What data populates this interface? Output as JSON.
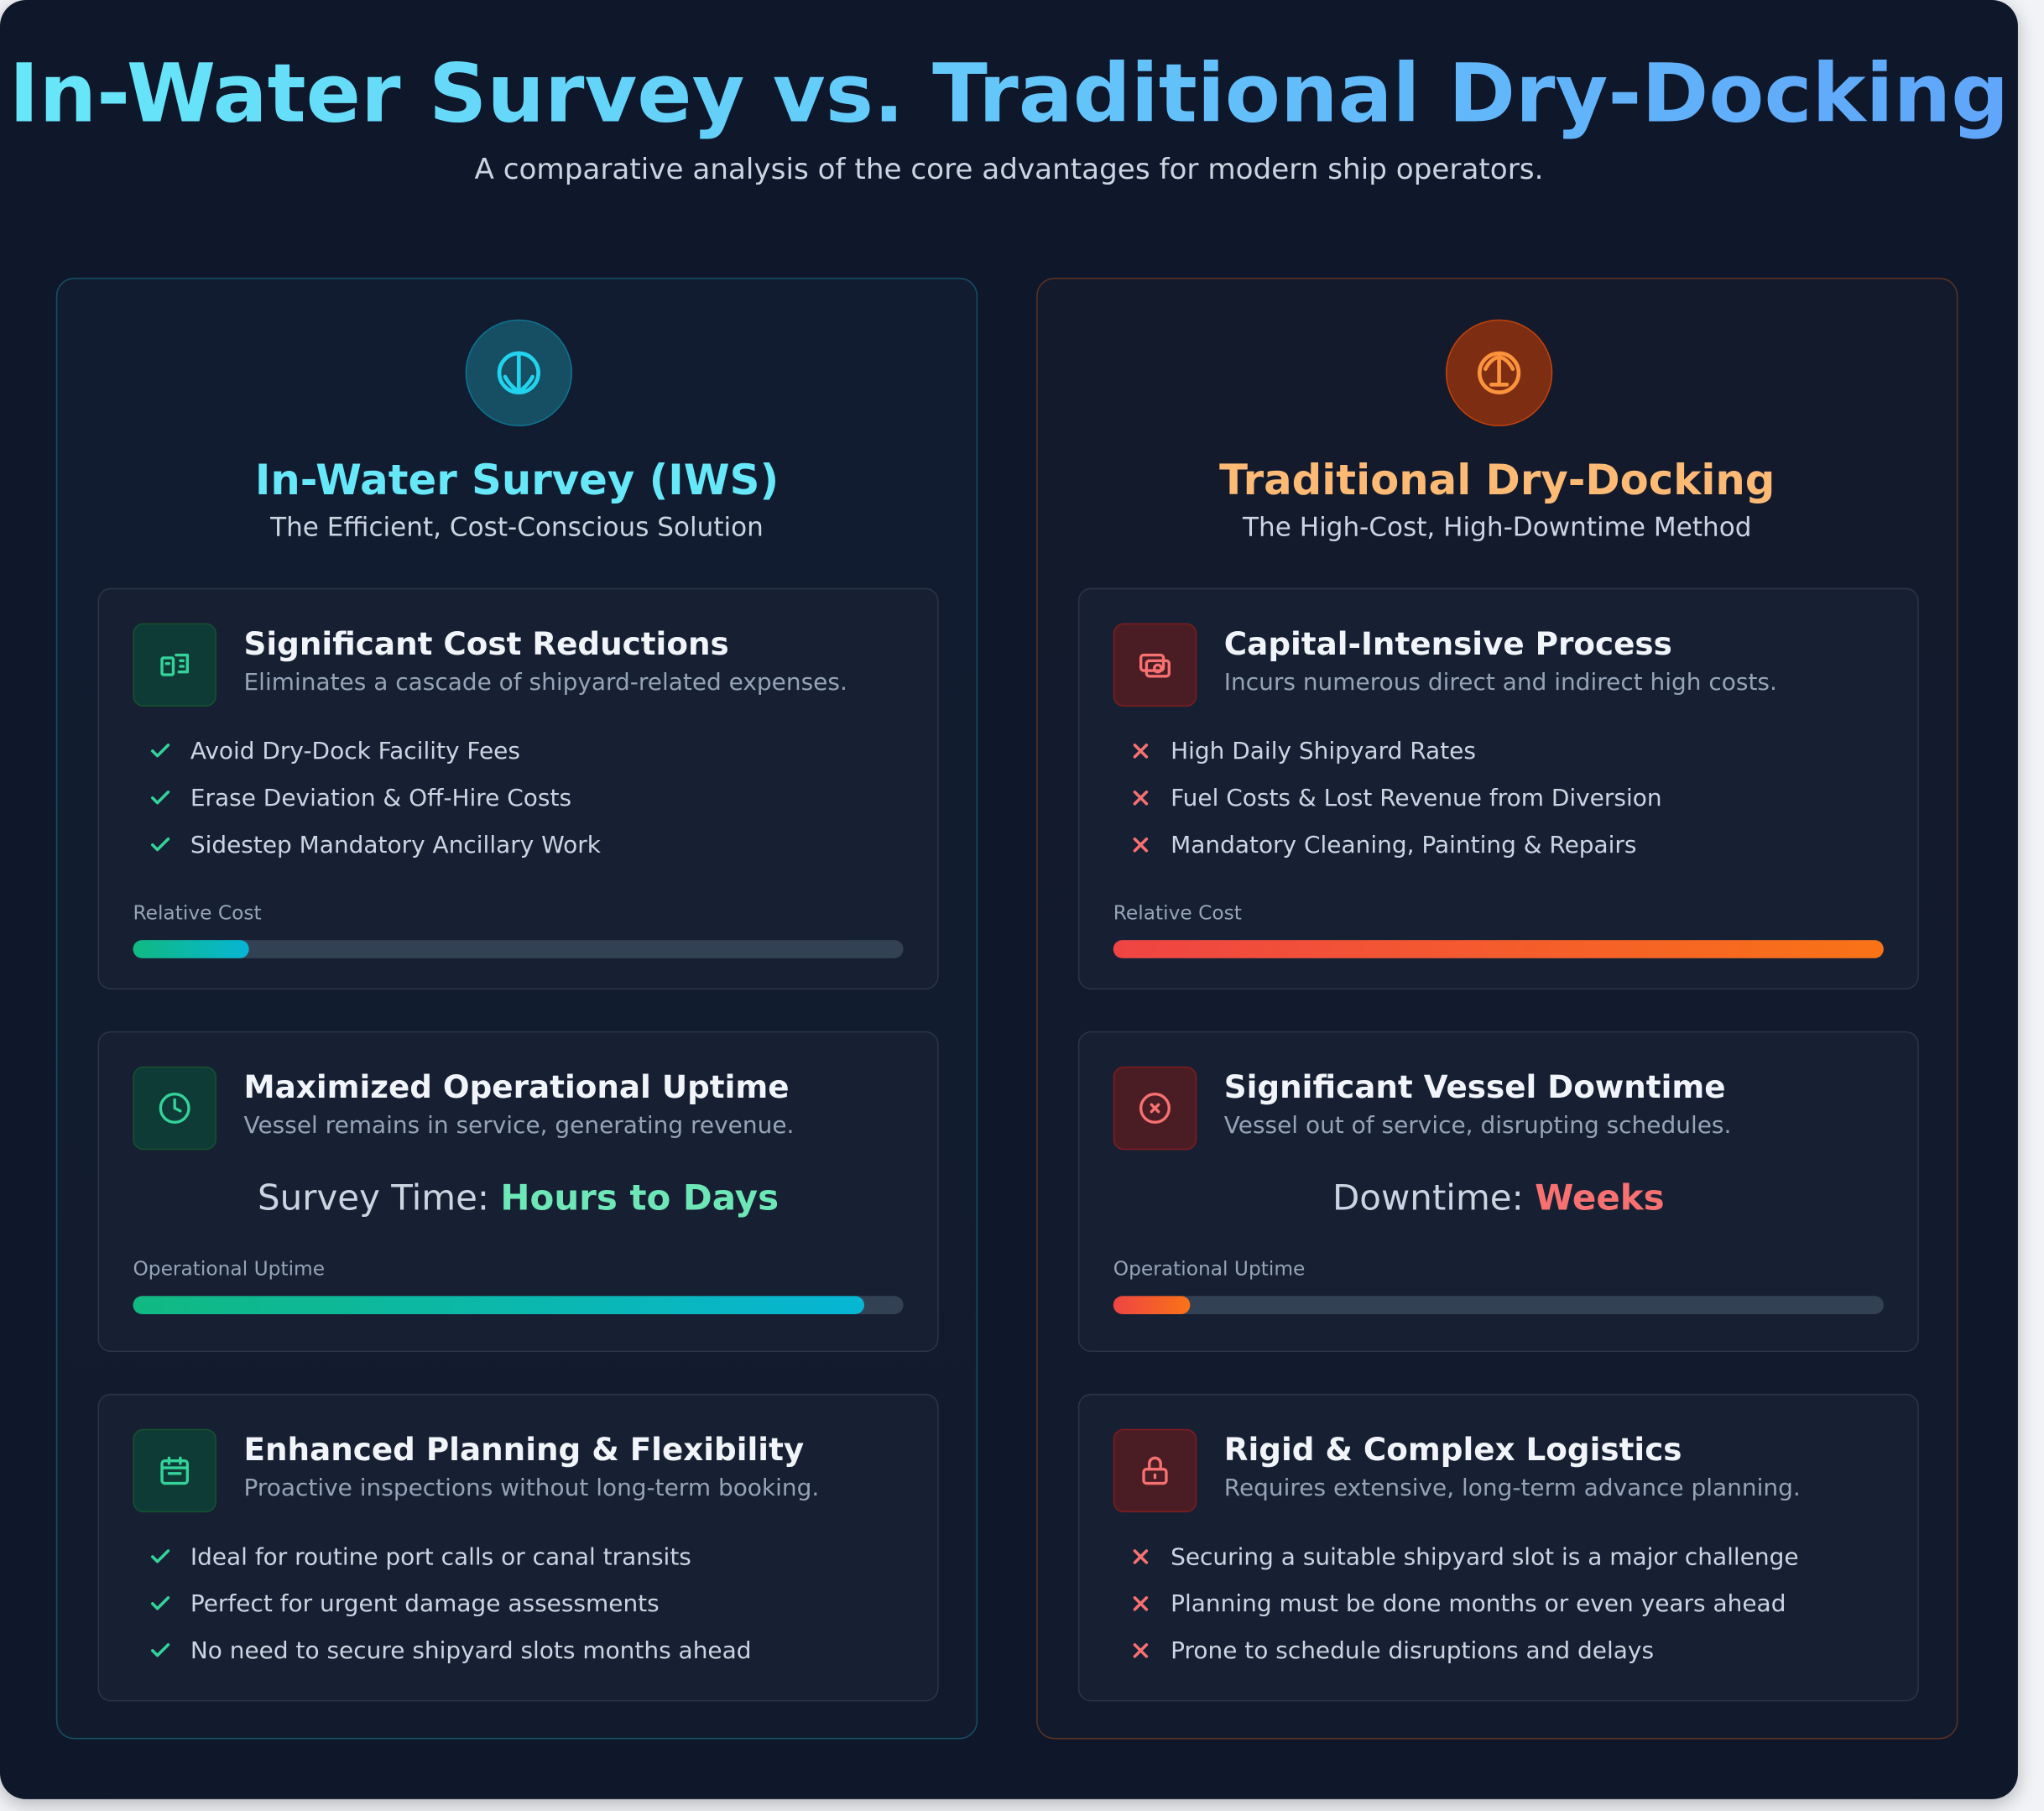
{
  "header": {
    "title": "In-Water Survey vs. Traditional Dry-Docking",
    "subtitle": "A comparative analysis of the core advantages for modern ship operators."
  },
  "columns": [
    {
      "title": "In-Water Survey (IWS)",
      "subtitle": "The Efficient, Cost-Conscious Solution",
      "cards": [
        {
          "title": "Significant Cost Reductions",
          "description": "Eliminates a cascade of shipyard-related expenses.",
          "items": [
            "Avoid Dry-Dock Facility Fees",
            "Erase Deviation & Off-Hire Costs",
            "Sidestep Mandatory Ancillary Work"
          ],
          "meter": {
            "label": "Relative Cost",
            "value": 15
          }
        },
        {
          "title": "Maximized Operational Uptime",
          "description": "Vessel remains in service, generating revenue.",
          "stat": {
            "label": "Survey Time:",
            "value": "Hours to Days"
          },
          "meter": {
            "label": "Operational Uptime",
            "value": 95
          }
        },
        {
          "title": "Enhanced Planning & Flexibility",
          "description": "Proactive inspections without long-term booking.",
          "items": [
            "Ideal for routine port calls or canal transits",
            "Perfect for urgent damage assessments",
            "No need to secure shipyard slots months ahead"
          ]
        }
      ]
    },
    {
      "title": "Traditional Dry-Docking",
      "subtitle": "The High-Cost, High-Downtime Method",
      "cards": [
        {
          "title": "Capital-Intensive Process",
          "description": "Incurs numerous direct and indirect high costs.",
          "items": [
            "High Daily Shipyard Rates",
            "Fuel Costs & Lost Revenue from Diversion",
            "Mandatory Cleaning, Painting & Repairs"
          ],
          "meter": {
            "label": "Relative Cost",
            "value": 100
          }
        },
        {
          "title": "Significant Vessel Downtime",
          "description": "Vessel out of service, disrupting schedules.",
          "stat": {
            "label": "Downtime:",
            "value": "Weeks"
          },
          "meter": {
            "label": "Operational Uptime",
            "value": 10
          }
        },
        {
          "title": "Rigid & Complex Logistics",
          "description": "Requires extensive, long-term advance planning.",
          "items": [
            "Securing a suitable shipyard slot is a major challenge",
            "Planning must be done months or even years ahead",
            "Prone to schedule disruptions and delays"
          ]
        }
      ]
    }
  ]
}
